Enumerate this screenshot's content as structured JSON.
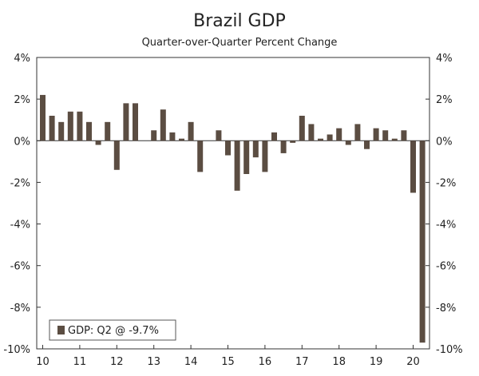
{
  "chart_data": {
    "type": "bar",
    "title": "Brazil GDP",
    "subtitle": "Quarter-over-Quarter Percent Change",
    "xlabel": "",
    "ylabel": "",
    "ylim": [
      -10,
      4
    ],
    "y_ticks": [
      4,
      2,
      0,
      -2,
      -4,
      -6,
      -8,
      -10
    ],
    "y_tick_labels": [
      "4%",
      "2%",
      "0%",
      "-2%",
      "-4%",
      "-6%",
      "-8%",
      "-10%"
    ],
    "year_labels": [
      "10",
      "11",
      "12",
      "13",
      "14",
      "15",
      "16",
      "17",
      "18",
      "19",
      "20"
    ],
    "categories": [
      "2010Q1",
      "2010Q2",
      "2010Q3",
      "2010Q4",
      "2011Q1",
      "2011Q2",
      "2011Q3",
      "2011Q4",
      "2012Q1",
      "2012Q2",
      "2012Q3",
      "2012Q4",
      "2013Q1",
      "2013Q2",
      "2013Q3",
      "2013Q4",
      "2014Q1",
      "2014Q2",
      "2014Q3",
      "2014Q4",
      "2015Q1",
      "2015Q2",
      "2015Q3",
      "2015Q4",
      "2016Q1",
      "2016Q2",
      "2016Q3",
      "2016Q4",
      "2017Q1",
      "2017Q2",
      "2017Q3",
      "2017Q4",
      "2018Q1",
      "2018Q2",
      "2018Q3",
      "2018Q4",
      "2019Q1",
      "2019Q2",
      "2019Q3",
      "2019Q4",
      "2020Q1",
      "2020Q2"
    ],
    "series": [
      {
        "name": "GDP",
        "color": "#5b4d42",
        "values": [
          2.2,
          1.2,
          0.9,
          1.4,
          1.4,
          0.9,
          -0.2,
          0.9,
          -1.4,
          1.8,
          1.8,
          0.0,
          0.5,
          1.5,
          0.4,
          0.1,
          0.9,
          -1.5,
          0.0,
          0.5,
          -0.7,
          -2.4,
          -1.6,
          -0.8,
          -1.5,
          0.4,
          -0.6,
          -0.1,
          1.2,
          0.8,
          0.1,
          0.3,
          0.6,
          -0.2,
          0.8,
          -0.4,
          0.6,
          0.5,
          0.1,
          0.5,
          -2.5,
          -9.7
        ]
      }
    ],
    "legend": {
      "label": "GDP: Q2 @ -9.7%",
      "position": "bottom-left"
    }
  }
}
